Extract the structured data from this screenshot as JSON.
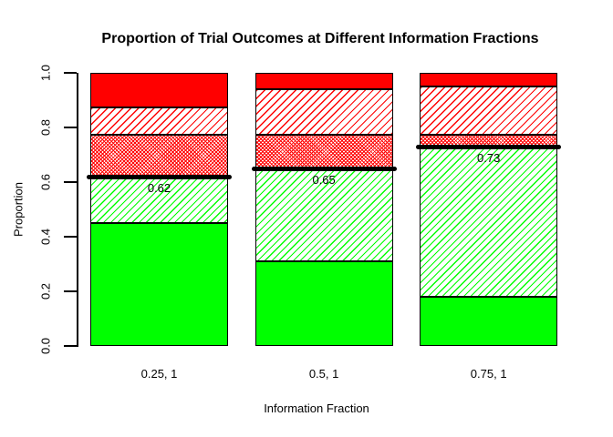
{
  "chart_data": {
    "type": "bar",
    "stacked": true,
    "title": "Proportion of Trial Outcomes at Different Information Fractions",
    "xlabel": "Information Fraction",
    "ylabel": "Proportion",
    "ylim": [
      0,
      1
    ],
    "yticks": [
      "0.0",
      "0.2",
      "0.4",
      "0.6",
      "0.8",
      "1.0"
    ],
    "categories": [
      "0.25, 1",
      "0.5, 1",
      "0.75, 1"
    ],
    "grid": false,
    "legend": "none",
    "axis_color": "#000000",
    "text_color": "#000000",
    "series": [
      {
        "name": "solid-green",
        "pattern": "solid",
        "color": "#00FF00",
        "values": [
          0.45,
          0.31,
          0.18
        ]
      },
      {
        "name": "green-hatch",
        "pattern": "diagonal-hatch",
        "color": "#00FF00",
        "values": [
          0.17,
          0.34,
          0.55
        ]
      },
      {
        "name": "red-dense-hatch",
        "pattern": "dense-hatch",
        "color": "#FF0000",
        "values": [
          0.155,
          0.125,
          0.045
        ]
      },
      {
        "name": "red-light-hatch",
        "pattern": "diagonal-hatch",
        "color": "#FF0000",
        "values": [
          0.1,
          0.165,
          0.175
        ]
      },
      {
        "name": "solid-red",
        "pattern": "solid",
        "color": "#FF0000",
        "values": [
          0.125,
          0.06,
          0.05
        ]
      }
    ],
    "threshold_lines": {
      "color": "#000000",
      "items": [
        {
          "bar": 0,
          "value": 0.62,
          "label": "0.62"
        },
        {
          "bar": 1,
          "value": 0.65,
          "label": "0.65"
        },
        {
          "bar": 2,
          "value": 0.73,
          "label": "0.73"
        }
      ]
    }
  }
}
